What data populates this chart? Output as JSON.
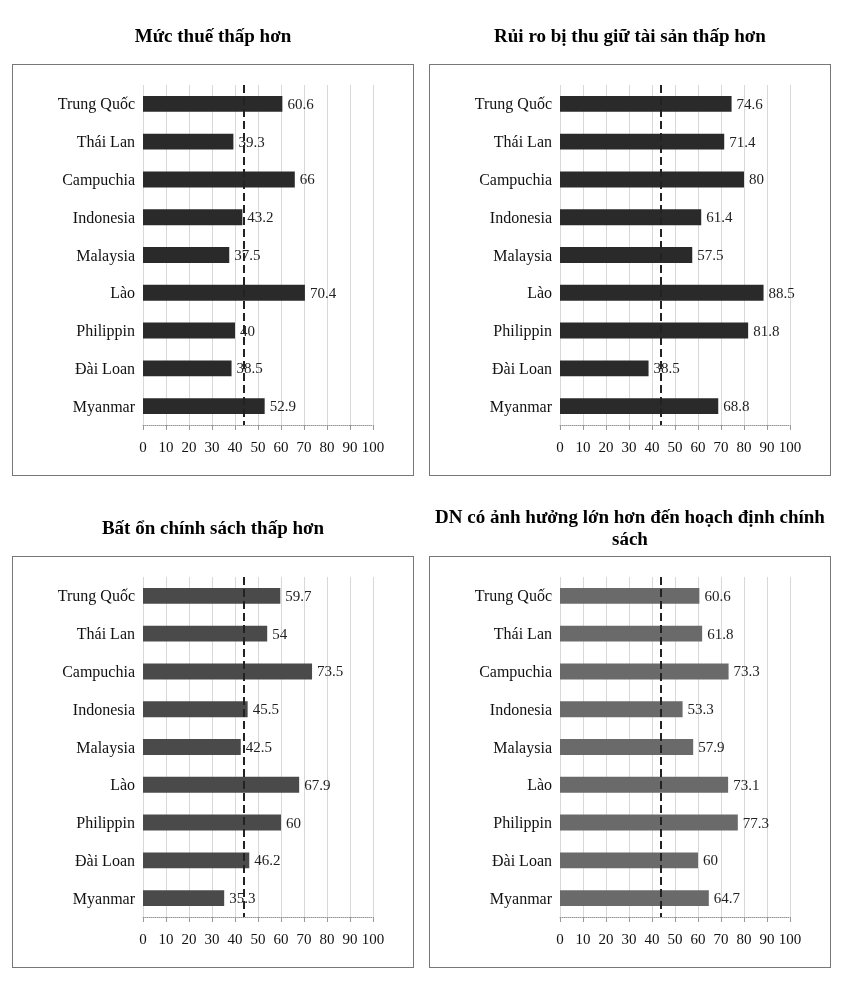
{
  "chart_data": [
    {
      "type": "bar",
      "orientation": "horizontal",
      "title": "Mức thuế thấp hơn",
      "categories": [
        "Trung Quốc",
        "Thái Lan",
        "Campuchia",
        "Indonesia",
        "Malaysia",
        "Lào",
        "Philippin",
        "Đài Loan",
        "Myanmar"
      ],
      "values": [
        60.6,
        39.3,
        66,
        43.2,
        37.5,
        70.4,
        40,
        38.5,
        52.9
      ],
      "color": "#2a2a2a",
      "xlim": [
        0,
        100
      ],
      "xticks": [
        0,
        10,
        20,
        30,
        40,
        50,
        60,
        70,
        80,
        90,
        100
      ],
      "grid": "x",
      "data_labels": true,
      "ref_lines": [
        {
          "axis": "x",
          "value": 44,
          "line_style": "dashed",
          "color": "#222222"
        }
      ]
    },
    {
      "type": "bar",
      "orientation": "horizontal",
      "title": "Rủi ro bị thu giữ tài sản thấp hơn",
      "categories": [
        "Trung Quốc",
        "Thái Lan",
        "Campuchia",
        "Indonesia",
        "Malaysia",
        "Lào",
        "Philippin",
        "Đài Loan",
        "Myanmar"
      ],
      "values": [
        74.6,
        71.4,
        80,
        61.4,
        57.5,
        88.5,
        81.8,
        38.5,
        68.8
      ],
      "color": "#2a2a2a",
      "xlim": [
        0,
        100
      ],
      "xticks": [
        0,
        10,
        20,
        30,
        40,
        50,
        60,
        70,
        80,
        90,
        100
      ],
      "grid": "x",
      "data_labels": true,
      "ref_lines": [
        {
          "axis": "x",
          "value": 44,
          "line_style": "dashed",
          "color": "#222222"
        }
      ]
    },
    {
      "type": "bar",
      "orientation": "horizontal",
      "title": "Bất ổn chính sách thấp hơn",
      "categories": [
        "Trung Quốc",
        "Thái Lan",
        "Campuchia",
        "Indonesia",
        "Malaysia",
        "Lào",
        "Philippin",
        "Đài Loan",
        "Myanmar"
      ],
      "values": [
        59.7,
        54,
        73.5,
        45.5,
        42.5,
        67.9,
        60,
        46.2,
        35.3
      ],
      "color": "#4a4a4a",
      "xlim": [
        0,
        100
      ],
      "xticks": [
        0,
        10,
        20,
        30,
        40,
        50,
        60,
        70,
        80,
        90,
        100
      ],
      "grid": "x",
      "data_labels": true,
      "ref_lines": [
        {
          "axis": "x",
          "value": 44,
          "line_style": "dashed",
          "color": "#222222"
        }
      ]
    },
    {
      "type": "bar",
      "orientation": "horizontal",
      "title": "DN có ảnh hưởng lớn hơn đến hoạch định chính sách",
      "categories": [
        "Trung Quốc",
        "Thái Lan",
        "Campuchia",
        "Indonesia",
        "Malaysia",
        "Lào",
        "Philippin",
        "Đài Loan",
        "Myanmar"
      ],
      "values": [
        60.6,
        61.8,
        73.3,
        53.3,
        57.9,
        73.1,
        77.3,
        60,
        64.7
      ],
      "color": "#6a6a6a",
      "xlim": [
        0,
        100
      ],
      "xticks": [
        0,
        10,
        20,
        30,
        40,
        50,
        60,
        70,
        80,
        90,
        100
      ],
      "grid": "x",
      "data_labels": true,
      "ref_lines": [
        {
          "axis": "x",
          "value": 44,
          "line_style": "dashed",
          "color": "#222222"
        }
      ]
    }
  ]
}
